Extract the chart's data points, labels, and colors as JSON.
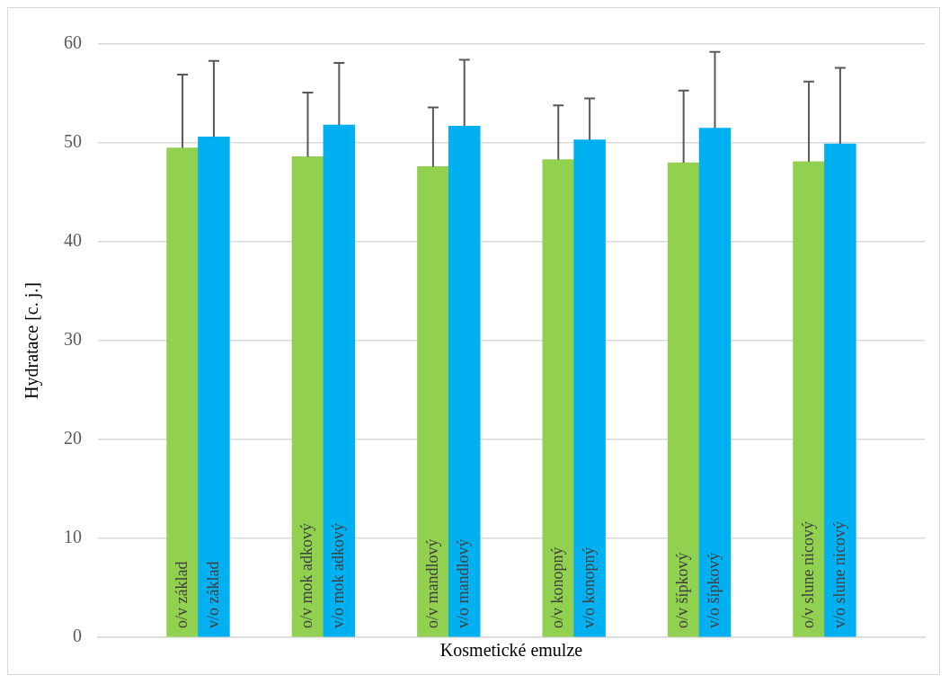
{
  "chart_data": {
    "type": "bar",
    "xlabel": "Kosmetické emulze",
    "ylabel": "Hydratace [c. j.]",
    "categories": [
      "o/v základ",
      "v/o základ",
      "o/v mok adkový",
      "v/o mok adkový",
      "o/v mandlový",
      "v/o mandlový",
      "o/v konopný",
      "v/o konopný",
      "o/v šípkový",
      "v/o šípkový",
      "o/v slune nicový",
      "v/o slune nicový"
    ],
    "values": [
      49.5,
      50.6,
      48.6,
      51.8,
      47.6,
      51.7,
      48.3,
      50.3,
      48.0,
      51.5,
      48.1,
      49.9
    ],
    "colors": [
      "#92d050",
      "#00b0f0",
      "#92d050",
      "#00b0f0",
      "#92d050",
      "#00b0f0",
      "#92d050",
      "#00b0f0",
      "#92d050",
      "#00b0f0",
      "#92d050",
      "#00b0f0"
    ],
    "errors": [
      [
        49.5,
        56.9
      ],
      [
        50.6,
        58.3
      ],
      [
        48.6,
        55.1
      ],
      [
        51.8,
        58.1
      ],
      [
        47.6,
        53.6
      ],
      [
        51.7,
        58.4
      ],
      [
        48.3,
        53.8
      ],
      [
        50.3,
        54.5
      ],
      [
        48.0,
        55.3
      ],
      [
        51.5,
        59.2
      ],
      [
        48.1,
        56.2
      ],
      [
        49.9,
        57.6
      ]
    ],
    "ylim": [
      0,
      60
    ],
    "yticks": [
      0,
      10,
      20,
      30,
      40,
      50,
      60
    ],
    "grid": "y",
    "legend": false
  }
}
